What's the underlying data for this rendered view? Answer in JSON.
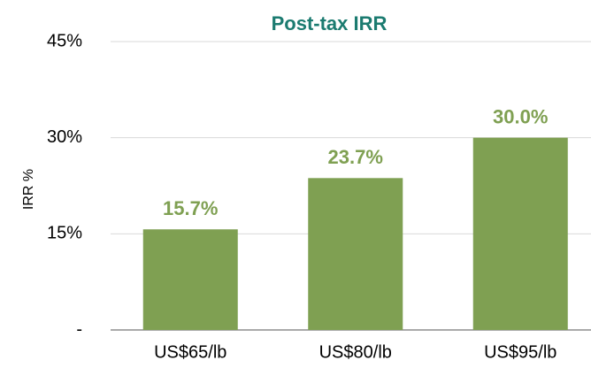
{
  "chart_data": {
    "type": "bar",
    "title": "Post-tax IRR",
    "y_label": "IRR %",
    "categories": [
      "US$65/lb",
      "US$80/lb",
      "US$95/lb"
    ],
    "values": [
      15.7,
      23.7,
      30.0
    ],
    "value_labels": [
      "15.7%",
      "23.7%",
      "30.0%"
    ],
    "color": "#7fa052",
    "ylim": [
      0,
      45
    ],
    "yticks": [
      {
        "value": 0,
        "label": "-"
      },
      {
        "value": 15,
        "label": "15%"
      },
      {
        "value": 30,
        "label": "30%"
      },
      {
        "value": 45,
        "label": "45%"
      }
    ],
    "grid": true
  }
}
